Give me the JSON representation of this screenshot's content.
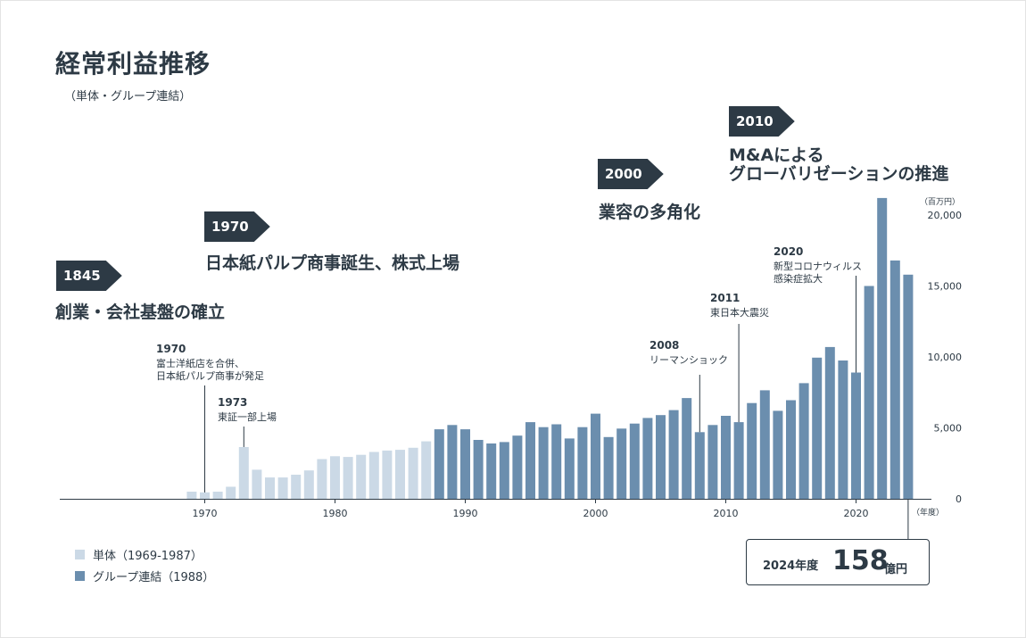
{
  "title": "経常利益推移",
  "subtitle": "（単体・グループ連結）",
  "eras": [
    {
      "year": "1845",
      "text": "創業・会社基盤の確立"
    },
    {
      "year": "1970",
      "text": "日本紙パルプ商事誕生、株式上場"
    },
    {
      "year": "2000",
      "text": "業容の多角化"
    },
    {
      "year": "2010",
      "text_line1": "M&Aによる",
      "text_line2": "グローバリゼーションの推進"
    }
  ],
  "annotations": [
    {
      "year": "1970",
      "line1": "富士洋紙店を合併、",
      "line2": "日本紙パルプ商事が発足"
    },
    {
      "year": "1973",
      "line1": "東証一部上場"
    },
    {
      "year": "2008",
      "line1": "リーマンショック"
    },
    {
      "year": "2011",
      "line1": "東日本大震災"
    },
    {
      "year": "2020",
      "line1": "新型コロナウィルス",
      "line2": "感染症拡大"
    }
  ],
  "legend": [
    {
      "label": "単体（1969-1987）",
      "color": "#cbd9e6"
    },
    {
      "label": "グループ連結（1988）",
      "color": "#6b8eae"
    }
  ],
  "callout": {
    "year_label": "2024年度",
    "value": "158",
    "unit": "億円"
  },
  "chart_data": {
    "type": "bar",
    "title": "経常利益推移",
    "ylabel_unit": "（百万円）",
    "xlabel_unit": "（年度）",
    "ylim": [
      0,
      20000
    ],
    "yticks": [
      {
        "value": 0,
        "label": "0"
      },
      {
        "value": 5000,
        "label": "5,000"
      },
      {
        "value": 10000,
        "label": "10,000"
      },
      {
        "value": 15000,
        "label": "15,000"
      },
      {
        "value": 20000,
        "label": "20,000"
      }
    ],
    "xticks": [
      1970,
      1980,
      1990,
      2000,
      2010,
      2020
    ],
    "series": [
      {
        "name": "単体（1969-1987）",
        "color": "#cbd9e6",
        "x": [
          1969,
          1970,
          1971,
          1972,
          1973,
          1974,
          1975,
          1976,
          1977,
          1978,
          1979,
          1980,
          1981,
          1982,
          1983,
          1984,
          1985,
          1986,
          1987
        ],
        "values": [
          500,
          450,
          500,
          850,
          3650,
          2050,
          1500,
          1500,
          1700,
          2000,
          2800,
          3000,
          2950,
          3100,
          3300,
          3400,
          3450,
          3600,
          4050
        ]
      },
      {
        "name": "グループ連結（1988）",
        "color": "#6b8eae",
        "x": [
          1988,
          1989,
          1990,
          1991,
          1992,
          1993,
          1994,
          1995,
          1996,
          1997,
          1998,
          1999,
          2000,
          2001,
          2002,
          2003,
          2004,
          2005,
          2006,
          2007,
          2008,
          2009,
          2010,
          2011,
          2012,
          2013,
          2014,
          2015,
          2016,
          2017,
          2018,
          2019,
          2020,
          2021,
          2022,
          2023,
          2024
        ],
        "values": [
          4900,
          5200,
          4900,
          4150,
          3900,
          4000,
          4450,
          5400,
          5050,
          5250,
          4250,
          5050,
          6000,
          4350,
          4950,
          5300,
          5700,
          5900,
          6250,
          7100,
          4700,
          5200,
          5850,
          5400,
          6750,
          7650,
          6200,
          6950,
          8150,
          9950,
          10700,
          9750,
          8900,
          15000,
          21200,
          16800,
          15800
        ]
      }
    ]
  }
}
